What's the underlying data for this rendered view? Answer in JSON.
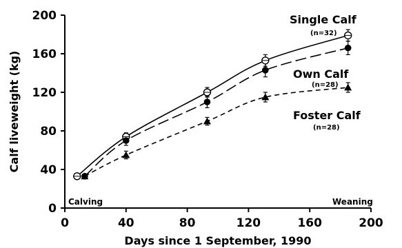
{
  "chart_data": {
    "type": "line",
    "xlabel": "Days since 1 September, 1990",
    "ylabel": "Calf liveweight (kg)",
    "xlim": [
      0,
      200
    ],
    "ylim": [
      0,
      200
    ],
    "xticks": [
      0,
      40,
      80,
      120,
      160,
      200
    ],
    "yticks": [
      0,
      40,
      80,
      120,
      160,
      200
    ],
    "grid": false,
    "legend": "inline",
    "annotations": [
      {
        "text": "Calving",
        "x": 2,
        "y": 3
      },
      {
        "text": "Weaning",
        "x": 185,
        "y": 3
      }
    ],
    "series": [
      {
        "name": "Single Calf",
        "n_label": "(n=32)",
        "marker": "open-circle",
        "line": "solid",
        "x": [
          8,
          40,
          93,
          131,
          185
        ],
        "y": [
          33,
          74,
          120,
          153,
          179
        ],
        "err": [
          0,
          4,
          5,
          6,
          6
        ]
      },
      {
        "name": "Own Calf",
        "n_label": "(n=28)",
        "marker": "filled-circle",
        "line": "long-dash",
        "x": [
          13,
          40,
          93,
          131,
          185
        ],
        "y": [
          33,
          70,
          110,
          143,
          166
        ],
        "err": [
          0,
          5,
          6,
          7,
          7
        ]
      },
      {
        "name": "Foster Calf",
        "n_label": "(n=28)",
        "marker": "filled-triangle",
        "line": "short-dash",
        "x": [
          13,
          40,
          93,
          131,
          185
        ],
        "y": [
          33,
          55,
          90,
          115,
          125
        ],
        "err": [
          0,
          4,
          4,
          5,
          5
        ]
      }
    ]
  }
}
